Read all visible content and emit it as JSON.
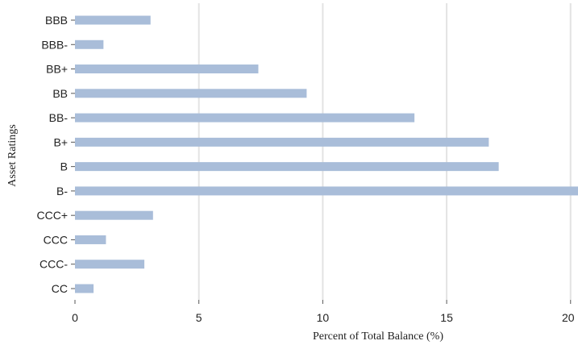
{
  "chart_data": {
    "type": "bar",
    "orientation": "horizontal",
    "categories": [
      "BBB",
      "BBB-",
      "BB+",
      "BB",
      "BB-",
      "B+",
      "B",
      "B-",
      "CCC+",
      "CCC",
      "CCC-",
      "CC"
    ],
    "values": [
      3.05,
      1.15,
      7.4,
      9.35,
      13.7,
      16.7,
      17.1,
      20.3,
      3.15,
      1.25,
      2.8,
      0.75
    ],
    "xlabel": "Percent of Total Balance (%)",
    "ylabel": "Asset Ratings",
    "xlim": [
      0,
      20.3
    ],
    "xticks": [
      0,
      5,
      10,
      15,
      20
    ],
    "grid": "vertical",
    "legend": "none",
    "colors": {
      "bar": "#a9bdd9",
      "grid": "#e3e3e3",
      "axis": "#555555"
    }
  }
}
